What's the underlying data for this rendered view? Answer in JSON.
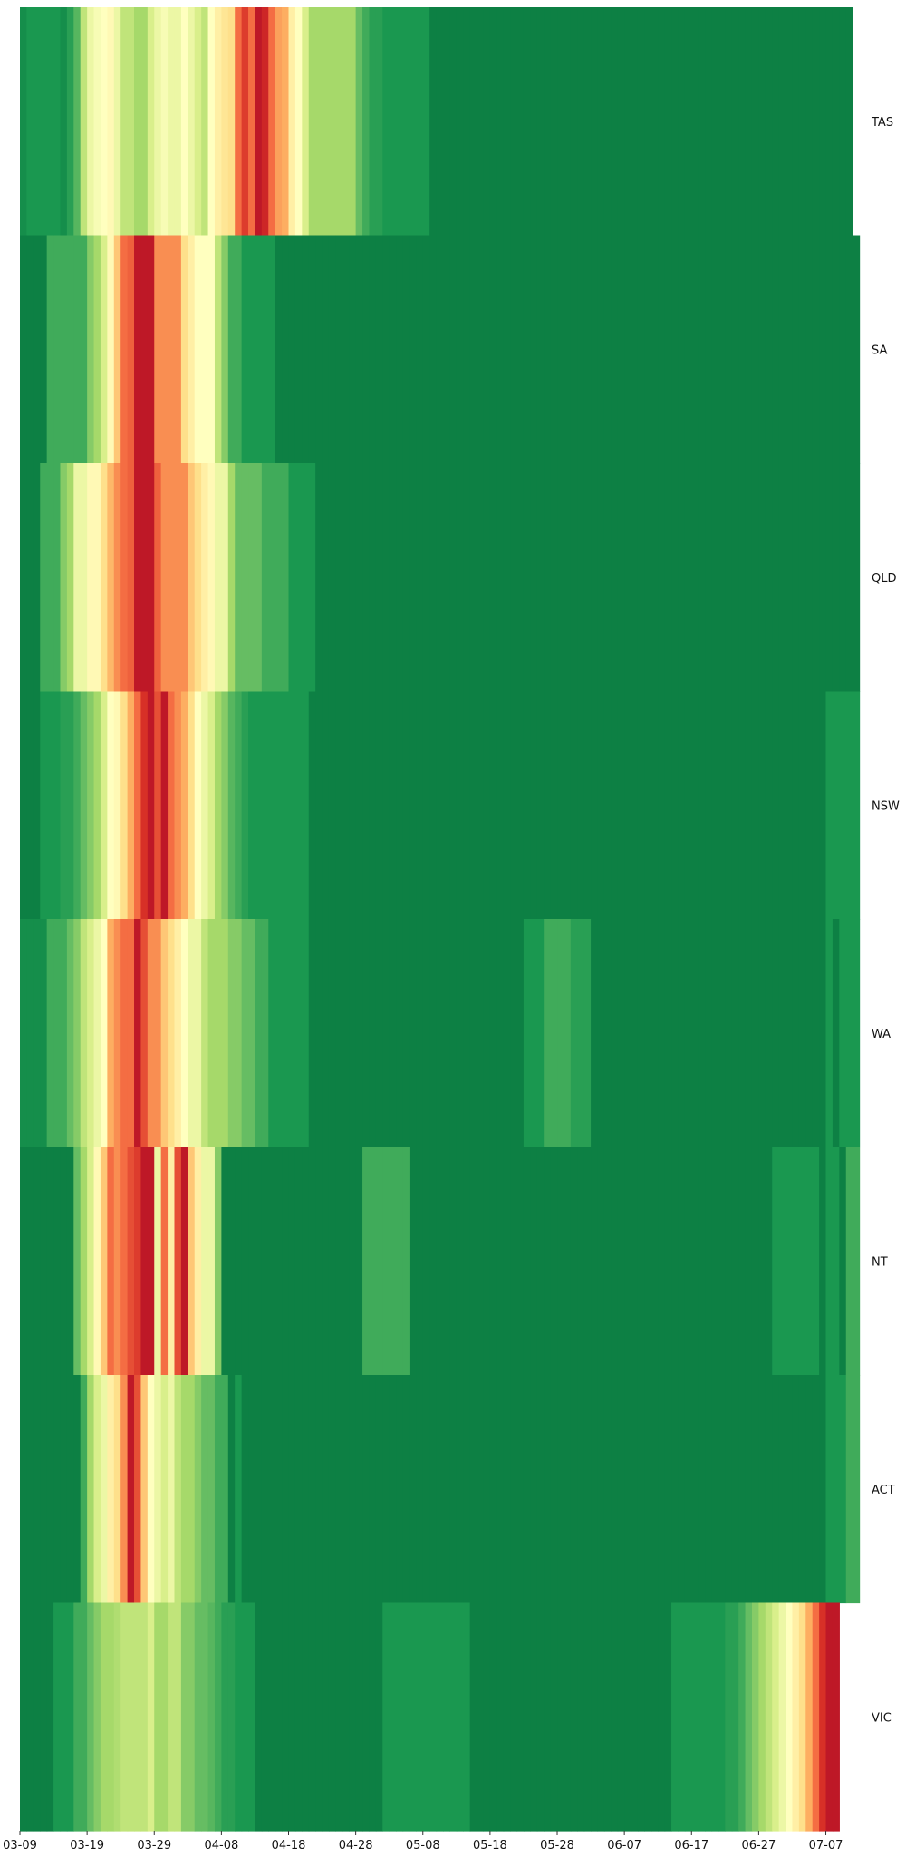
{
  "chart_data": {
    "type": "heatmap",
    "title": "",
    "xlabel": "",
    "ylabel": "",
    "colormap": "RdYlGn_r",
    "level_range": [
      0,
      1
    ],
    "x_dates": [
      "03-09",
      "03-10",
      "03-11",
      "03-12",
      "03-13",
      "03-14",
      "03-15",
      "03-16",
      "03-17",
      "03-18",
      "03-19",
      "03-20",
      "03-21",
      "03-22",
      "03-23",
      "03-24",
      "03-25",
      "03-26",
      "03-27",
      "03-28",
      "03-29",
      "03-30",
      "03-31",
      "04-01",
      "04-02",
      "04-03",
      "04-04",
      "04-05",
      "04-06",
      "04-07",
      "04-08",
      "04-09",
      "04-10",
      "04-11",
      "04-12",
      "04-13",
      "04-14",
      "04-15",
      "04-16",
      "04-17",
      "04-18",
      "04-19",
      "04-20",
      "04-21",
      "04-22",
      "04-23",
      "04-24",
      "04-25",
      "04-26",
      "04-27",
      "04-28",
      "04-29",
      "04-30",
      "05-01",
      "05-02",
      "05-03",
      "05-04",
      "05-05",
      "05-06",
      "05-07",
      "05-08",
      "05-09",
      "05-10",
      "05-11",
      "05-12",
      "05-13",
      "05-14",
      "05-15",
      "05-16",
      "05-17",
      "05-18",
      "05-19",
      "05-20",
      "05-21",
      "05-22",
      "05-23",
      "05-24",
      "05-25",
      "05-26",
      "05-27",
      "05-28",
      "05-29",
      "05-30",
      "05-31",
      "06-01",
      "06-02",
      "06-03",
      "06-04",
      "06-05",
      "06-06",
      "06-07",
      "06-08",
      "06-09",
      "06-10",
      "06-11",
      "06-12",
      "06-13",
      "06-14",
      "06-15",
      "06-16",
      "06-17",
      "06-18",
      "06-19",
      "06-20",
      "06-21",
      "06-22",
      "06-23",
      "06-24",
      "06-25",
      "06-26",
      "06-27",
      "06-28",
      "06-29",
      "06-30",
      "07-01",
      "07-02",
      "07-03",
      "07-04",
      "07-05",
      "07-06",
      "07-07",
      "07-08",
      "07-09",
      "07-10",
      "07-11",
      "07-12"
    ],
    "x_tick_labels": [
      "03-09",
      "03-19",
      "03-29",
      "04-08",
      "04-18",
      "04-28",
      "05-08",
      "05-18",
      "05-28",
      "06-07",
      "06-17",
      "06-27",
      "07-07"
    ],
    "y_labels": [
      "TAS",
      "SA",
      "QLD",
      "NSW",
      "WA",
      "NT",
      "ACT",
      "VIC"
    ],
    "z": [
      [
        0.08,
        0.1,
        0.1,
        0.1,
        0.1,
        0.1,
        0.08,
        0.12,
        0.18,
        0.35,
        0.45,
        0.48,
        0.5,
        0.52,
        0.45,
        0.35,
        0.35,
        0.3,
        0.3,
        0.4,
        0.45,
        0.48,
        0.45,
        0.45,
        0.5,
        0.45,
        0.4,
        0.35,
        0.5,
        0.55,
        0.58,
        0.6,
        0.8,
        0.88,
        0.8,
        0.95,
        0.92,
        0.8,
        0.72,
        0.7,
        0.55,
        0.5,
        0.4,
        0.3,
        0.3,
        0.3,
        0.3,
        0.3,
        0.3,
        0.3,
        0.2,
        0.15,
        0.12,
        0.12,
        0.1,
        0.1,
        0.1,
        0.1,
        0.1,
        0.1,
        0.1,
        0.05,
        0.05,
        0.05,
        0.05,
        0.05,
        0.05,
        0.05,
        0.05,
        0.05,
        0.05,
        0.05,
        0.05,
        0.05,
        0.05,
        0.05,
        0.05,
        0.05,
        0.05,
        0.05,
        0.05,
        0.05,
        0.05,
        0.05,
        0.05,
        0.05,
        0.05,
        0.05,
        0.05,
        0.05,
        0.05,
        0.05,
        0.05,
        0.05,
        0.05,
        0.05,
        0.05,
        0.05,
        0.05,
        0.05,
        0.05,
        0.05,
        0.05,
        0.05,
        0.05,
        0.05,
        0.05,
        0.05,
        0.05,
        0.05,
        0.05,
        0.05,
        0.05,
        0.05,
        0.05,
        0.05,
        0.05,
        0.05,
        0.05,
        0.05,
        0.05,
        0.05,
        0.05,
        0.05
      ],
      [
        0.05,
        0.05,
        0.05,
        0.05,
        0.15,
        0.15,
        0.15,
        0.15,
        0.15,
        0.15,
        0.25,
        0.3,
        0.4,
        0.52,
        0.65,
        0.8,
        0.82,
        0.95,
        0.95,
        0.95,
        0.75,
        0.75,
        0.75,
        0.75,
        0.6,
        0.55,
        0.5,
        0.5,
        0.5,
        0.35,
        0.25,
        0.15,
        0.15,
        0.1,
        0.1,
        0.1,
        0.1,
        0.1,
        0.05,
        0.05,
        0.05,
        0.05,
        0.05,
        0.05,
        0.05,
        0.05,
        0.05,
        0.05,
        0.05,
        0.05,
        0.05,
        0.05,
        0.05,
        0.05,
        0.05,
        0.05,
        0.05,
        0.05,
        0.05,
        0.05,
        0.05,
        0.05,
        0.05,
        0.05,
        0.05,
        0.05,
        0.05,
        0.05,
        0.05,
        0.05,
        0.05,
        0.05,
        0.05,
        0.05,
        0.05,
        0.05,
        0.05,
        0.05,
        0.05,
        0.05,
        0.05,
        0.05,
        0.05,
        0.05,
        0.05,
        0.05,
        0.05,
        0.05,
        0.05,
        0.05,
        0.05,
        0.05,
        0.05,
        0.05,
        0.05,
        0.05,
        0.05,
        0.05,
        0.05,
        0.05,
        0.05,
        0.05,
        0.05,
        0.05,
        0.05,
        0.05,
        0.05,
        0.05,
        0.05,
        0.05,
        0.05,
        0.05,
        0.05,
        0.05,
        0.05,
        0.05,
        0.05,
        0.05,
        0.05,
        0.05,
        0.05,
        0.05,
        0.05,
        0.05,
        0.05
      ],
      [
        0.05,
        0.05,
        0.05,
        0.15,
        0.15,
        0.15,
        0.25,
        0.3,
        0.45,
        0.45,
        0.52,
        0.52,
        0.6,
        0.68,
        0.75,
        0.8,
        0.82,
        0.95,
        0.95,
        0.95,
        0.82,
        0.75,
        0.75,
        0.75,
        0.75,
        0.65,
        0.6,
        0.55,
        0.52,
        0.45,
        0.45,
        0.3,
        0.2,
        0.2,
        0.2,
        0.2,
        0.15,
        0.15,
        0.15,
        0.15,
        0.1,
        0.1,
        0.1,
        0.1,
        0.05,
        0.05,
        0.05,
        0.05,
        0.05,
        0.05,
        0.05,
        0.05,
        0.05,
        0.05,
        0.05,
        0.05,
        0.05,
        0.05,
        0.05,
        0.05,
        0.05,
        0.05,
        0.05,
        0.05,
        0.05,
        0.05,
        0.05,
        0.05,
        0.05,
        0.05,
        0.05,
        0.05,
        0.05,
        0.05,
        0.05,
        0.05,
        0.05,
        0.05,
        0.05,
        0.05,
        0.05,
        0.05,
        0.05,
        0.05,
        0.05,
        0.05,
        0.05,
        0.05,
        0.05,
        0.05,
        0.05,
        0.05,
        0.05,
        0.05,
        0.05,
        0.05,
        0.05,
        0.05,
        0.05,
        0.05,
        0.05,
        0.05,
        0.05,
        0.05,
        0.05,
        0.05,
        0.05,
        0.05,
        0.05,
        0.05,
        0.05,
        0.05,
        0.05,
        0.05,
        0.05,
        0.05,
        0.05,
        0.05,
        0.05,
        0.05,
        0.05,
        0.05,
        0.05,
        0.05,
        0.05
      ],
      [
        0.05,
        0.05,
        0.05,
        0.1,
        0.1,
        0.1,
        0.12,
        0.12,
        0.15,
        0.2,
        0.25,
        0.3,
        0.4,
        0.5,
        0.52,
        0.6,
        0.7,
        0.8,
        0.9,
        0.95,
        0.85,
        0.95,
        0.8,
        0.75,
        0.7,
        0.6,
        0.5,
        0.45,
        0.4,
        0.3,
        0.25,
        0.18,
        0.15,
        0.12,
        0.1,
        0.1,
        0.1,
        0.1,
        0.1,
        0.1,
        0.1,
        0.1,
        0.1,
        0.05,
        0.05,
        0.05,
        0.05,
        0.05,
        0.05,
        0.05,
        0.05,
        0.05,
        0.05,
        0.05,
        0.05,
        0.05,
        0.05,
        0.05,
        0.05,
        0.05,
        0.05,
        0.05,
        0.05,
        0.05,
        0.05,
        0.05,
        0.05,
        0.05,
        0.05,
        0.05,
        0.05,
        0.05,
        0.05,
        0.05,
        0.05,
        0.05,
        0.05,
        0.05,
        0.05,
        0.05,
        0.05,
        0.05,
        0.05,
        0.05,
        0.05,
        0.05,
        0.05,
        0.05,
        0.05,
        0.05,
        0.05,
        0.05,
        0.05,
        0.05,
        0.05,
        0.05,
        0.05,
        0.05,
        0.05,
        0.05,
        0.05,
        0.05,
        0.05,
        0.05,
        0.05,
        0.05,
        0.05,
        0.05,
        0.05,
        0.05,
        0.05,
        0.05,
        0.05,
        0.05,
        0.05,
        0.05,
        0.05,
        0.05,
        0.05,
        0.05,
        0.1,
        0.1,
        0.1,
        0.1,
        0.1
      ],
      [
        0.08,
        0.08,
        0.08,
        0.08,
        0.15,
        0.15,
        0.15,
        0.2,
        0.25,
        0.35,
        0.4,
        0.45,
        0.5,
        0.7,
        0.75,
        0.8,
        0.8,
        0.95,
        0.85,
        0.75,
        0.75,
        0.65,
        0.6,
        0.55,
        0.5,
        0.45,
        0.45,
        0.35,
        0.3,
        0.3,
        0.3,
        0.25,
        0.25,
        0.2,
        0.2,
        0.15,
        0.15,
        0.1,
        0.1,
        0.1,
        0.1,
        0.1,
        0.1,
        0.05,
        0.05,
        0.05,
        0.05,
        0.05,
        0.05,
        0.05,
        0.05,
        0.05,
        0.05,
        0.05,
        0.05,
        0.05,
        0.05,
        0.05,
        0.05,
        0.05,
        0.05,
        0.05,
        0.05,
        0.05,
        0.05,
        0.05,
        0.05,
        0.05,
        0.05,
        0.05,
        0.05,
        0.05,
        0.05,
        0.05,
        0.05,
        0.1,
        0.1,
        0.1,
        0.15,
        0.15,
        0.15,
        0.15,
        0.12,
        0.12,
        0.12,
        0.05,
        0.05,
        0.05,
        0.05,
        0.05,
        0.05,
        0.05,
        0.05,
        0.05,
        0.05,
        0.05,
        0.05,
        0.05,
        0.05,
        0.05,
        0.05,
        0.05,
        0.05,
        0.05,
        0.05,
        0.05,
        0.05,
        0.05,
        0.05,
        0.05,
        0.05,
        0.05,
        0.05,
        0.05,
        0.05,
        0.05,
        0.05,
        0.05,
        0.05,
        0.05,
        0.1,
        0.05,
        0.1,
        0.1,
        0.1
      ],
      [
        0.05,
        0.05,
        0.05,
        0.05,
        0.05,
        0.05,
        0.05,
        0.05,
        0.2,
        0.3,
        0.4,
        0.52,
        0.65,
        0.8,
        0.75,
        0.8,
        0.85,
        0.88,
        0.95,
        0.95,
        0.45,
        0.8,
        0.55,
        0.85,
        0.95,
        0.65,
        0.55,
        0.45,
        0.45,
        0.25,
        0.05,
        0.05,
        0.05,
        0.05,
        0.05,
        0.05,
        0.05,
        0.05,
        0.05,
        0.05,
        0.05,
        0.05,
        0.05,
        0.05,
        0.05,
        0.05,
        0.05,
        0.05,
        0.05,
        0.05,
        0.05,
        0.15,
        0.15,
        0.15,
        0.15,
        0.15,
        0.15,
        0.15,
        0.05,
        0.05,
        0.05,
        0.05,
        0.05,
        0.05,
        0.05,
        0.05,
        0.05,
        0.05,
        0.05,
        0.05,
        0.05,
        0.05,
        0.05,
        0.05,
        0.05,
        0.05,
        0.05,
        0.05,
        0.05,
        0.05,
        0.05,
        0.05,
        0.05,
        0.05,
        0.05,
        0.05,
        0.05,
        0.05,
        0.05,
        0.05,
        0.05,
        0.05,
        0.05,
        0.05,
        0.05,
        0.05,
        0.05,
        0.05,
        0.05,
        0.05,
        0.05,
        0.05,
        0.05,
        0.05,
        0.05,
        0.05,
        0.05,
        0.05,
        0.05,
        0.05,
        0.05,
        0.05,
        0.1,
        0.1,
        0.1,
        0.1,
        0.1,
        0.1,
        0.1,
        0.05,
        0.1,
        0.1,
        0.05,
        0.15,
        0.15
      ],
      [
        0.05,
        0.05,
        0.05,
        0.05,
        0.05,
        0.05,
        0.05,
        0.05,
        0.05,
        0.15,
        0.3,
        0.4,
        0.45,
        0.55,
        0.6,
        0.75,
        0.95,
        0.85,
        0.65,
        0.5,
        0.45,
        0.4,
        0.45,
        0.35,
        0.3,
        0.3,
        0.25,
        0.2,
        0.2,
        0.15,
        0.15,
        0.05,
        0.1,
        0.05,
        0.05,
        0.05,
        0.05,
        0.05,
        0.05,
        0.05,
        0.05,
        0.05,
        0.05,
        0.05,
        0.05,
        0.05,
        0.05,
        0.05,
        0.05,
        0.05,
        0.05,
        0.05,
        0.05,
        0.05,
        0.05,
        0.05,
        0.05,
        0.05,
        0.05,
        0.05,
        0.05,
        0.05,
        0.05,
        0.05,
        0.05,
        0.05,
        0.05,
        0.05,
        0.05,
        0.05,
        0.05,
        0.05,
        0.05,
        0.05,
        0.05,
        0.05,
        0.05,
        0.05,
        0.05,
        0.05,
        0.05,
        0.05,
        0.05,
        0.05,
        0.05,
        0.05,
        0.05,
        0.05,
        0.05,
        0.05,
        0.05,
        0.05,
        0.05,
        0.05,
        0.05,
        0.05,
        0.05,
        0.05,
        0.05,
        0.05,
        0.05,
        0.05,
        0.05,
        0.05,
        0.05,
        0.05,
        0.05,
        0.05,
        0.05,
        0.05,
        0.05,
        0.05,
        0.05,
        0.05,
        0.05,
        0.05,
        0.05,
        0.05,
        0.05,
        0.05,
        0.1,
        0.1,
        0.1,
        0.15,
        0.15
      ],
      [
        0.05,
        0.05,
        0.05,
        0.05,
        0.05,
        0.1,
        0.1,
        0.1,
        0.15,
        0.15,
        0.2,
        0.25,
        0.3,
        0.3,
        0.32,
        0.35,
        0.35,
        0.35,
        0.35,
        0.4,
        0.3,
        0.3,
        0.35,
        0.35,
        0.25,
        0.25,
        0.2,
        0.2,
        0.18,
        0.15,
        0.12,
        0.12,
        0.1,
        0.1,
        0.1,
        0.05,
        0.05,
        0.05,
        0.05,
        0.05,
        0.05,
        0.05,
        0.05,
        0.05,
        0.05,
        0.05,
        0.05,
        0.05,
        0.05,
        0.05,
        0.05,
        0.05,
        0.05,
        0.05,
        0.1,
        0.1,
        0.1,
        0.1,
        0.1,
        0.1,
        0.1,
        0.1,
        0.1,
        0.1,
        0.1,
        0.1,
        0.1,
        0.05,
        0.05,
        0.05,
        0.05,
        0.05,
        0.05,
        0.05,
        0.05,
        0.05,
        0.05,
        0.05,
        0.05,
        0.05,
        0.05,
        0.05,
        0.05,
        0.05,
        0.05,
        0.05,
        0.05,
        0.05,
        0.05,
        0.05,
        0.05,
        0.05,
        0.05,
        0.05,
        0.05,
        0.05,
        0.05,
        0.1,
        0.1,
        0.1,
        0.1,
        0.1,
        0.1,
        0.1,
        0.1,
        0.12,
        0.12,
        0.15,
        0.2,
        0.25,
        0.3,
        0.35,
        0.4,
        0.45,
        0.5,
        0.55,
        0.6,
        0.7,
        0.8,
        0.9,
        0.95,
        0.95
      ]
    ]
  }
}
